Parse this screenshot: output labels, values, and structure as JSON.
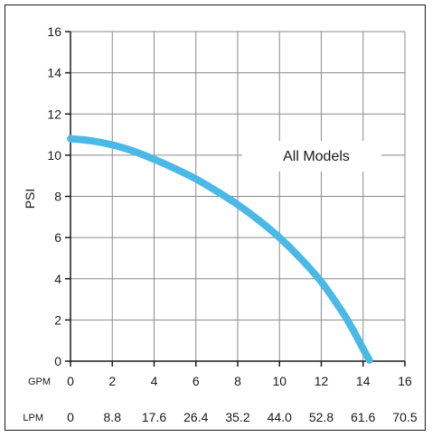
{
  "chart_data": {
    "type": "line",
    "title": "",
    "xlabel": "",
    "ylabel": "PSI",
    "xlim": [
      0,
      16
    ],
    "ylim": [
      0,
      16
    ],
    "grid": true,
    "x_axis_name": "GPM",
    "x2_axis_name": "LPM",
    "x_ticks": [
      "0",
      "2",
      "4",
      "6",
      "8",
      "10",
      "12",
      "14",
      "16"
    ],
    "x2_ticks": [
      "0",
      "8.8",
      "17.6",
      "26.4",
      "35.2",
      "44.0",
      "52.8",
      "61.6",
      "70.5"
    ],
    "y_ticks": [
      "0",
      "2",
      "4",
      "6",
      "8",
      "10",
      "12",
      "14",
      "16"
    ],
    "annotation": "All Models",
    "series": [
      {
        "color": "#4bb9e6",
        "x": [
          0,
          1,
          2,
          3,
          4,
          5,
          6,
          7,
          8,
          9,
          10,
          11,
          12,
          13,
          13.5,
          14,
          14.3
        ],
        "y": [
          10.8,
          10.7,
          10.5,
          10.2,
          9.8,
          9.35,
          8.85,
          8.25,
          7.6,
          6.85,
          6.0,
          5.0,
          3.85,
          2.4,
          1.55,
          0.6,
          0.05
        ]
      }
    ]
  }
}
